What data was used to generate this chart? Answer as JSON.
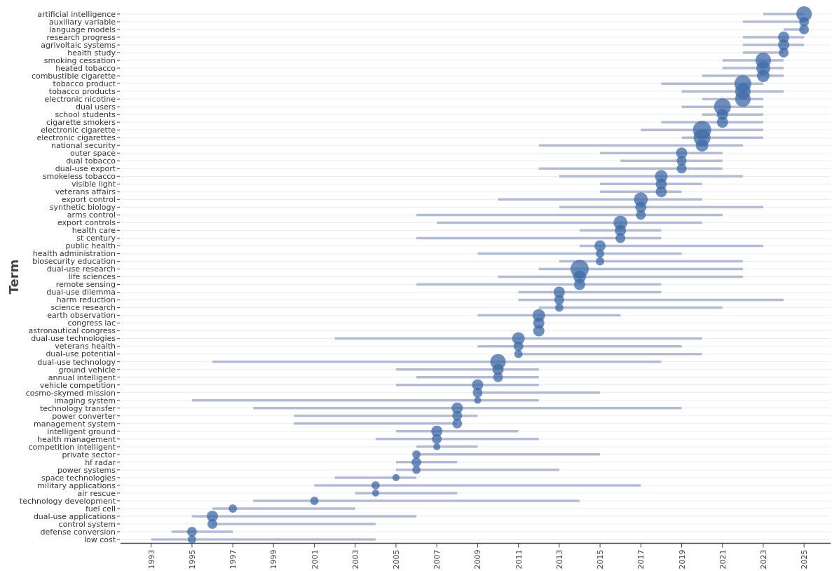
{
  "chart_data": {
    "type": "bubble",
    "orientation": "horizontal",
    "ylabel": "Term",
    "grid": "y",
    "categories": [
      "artificial intelligence",
      "auxiliary variable",
      "language models",
      "research progress",
      "agrivoltaic systems",
      "health study",
      "smoking cessation",
      "heated tobacco",
      "combustible cigarette",
      "tobacco product",
      "tobacco products",
      "electronic nicotine",
      "dual users",
      "school students",
      "cigarette smokers",
      "electronic cigarette",
      "electronic cigarettes",
      "national security",
      "outer space",
      "dual tobacco",
      "dual-use export",
      "smokeless tobacco",
      "visible light",
      "veterans affairs",
      "export control",
      "synthetic biology",
      "arms control",
      "export controls",
      "health care",
      "st century",
      "public health",
      "health administration",
      "biosecurity education",
      "dual-use research",
      "life sciences",
      "remote sensing",
      "dual-use dilemma",
      "harm reduction",
      "science research",
      "earth observation",
      "congress iac",
      "astronautical congress",
      "dual-use technologies",
      "veterans health",
      "dual-use potential",
      "dual-use technology",
      "ground vehicle",
      "annual intelligent",
      "vehicle competition",
      "cosmo-skymed mission",
      "imaging system",
      "technology transfer",
      "power converter",
      "management system",
      "intelligent ground",
      "health management",
      "competition intelligent",
      "private sector",
      "hf radar",
      "power systems",
      "space technologies",
      "military applications",
      "air rescue",
      "technology development",
      "fuel cell",
      "dual-use applications",
      "control system",
      "defense conversion",
      "low cost"
    ],
    "series": [
      {
        "color": "#3d6aa6",
        "values": [
          2025,
          2025,
          2025,
          2024,
          2024,
          2024,
          2023,
          2023,
          2023,
          2022,
          2022,
          2022,
          2021,
          2021,
          2021,
          2020,
          2020,
          2020,
          2019,
          2019,
          2019,
          2018,
          2018,
          2018,
          2017,
          2017,
          2017,
          2016,
          2016,
          2016,
          2015,
          2015,
          2015,
          2014,
          2014,
          2014,
          2013,
          2013,
          2013,
          2012,
          2012,
          2012,
          2011,
          2011,
          2011,
          2010,
          2010,
          2010,
          2009,
          2009,
          2009,
          2008,
          2008,
          2008,
          2007,
          2007,
          2007,
          2006,
          2006,
          2006,
          2005,
          2004,
          2004,
          2001,
          1997,
          1996,
          1996,
          1995,
          1995
        ],
        "sizes": [
          0.72,
          0.29,
          0.29,
          0.38,
          0.38,
          0.29,
          0.72,
          0.59,
          0.48,
          0.85,
          0.72,
          0.72,
          0.85,
          0.38,
          0.38,
          1,
          0.85,
          0.48,
          0.38,
          0.29,
          0.29,
          0.48,
          0.38,
          0.38,
          0.59,
          0.38,
          0.29,
          0.59,
          0.38,
          0.29,
          0.38,
          0.21,
          0.21,
          1,
          0.48,
          0.38,
          0.38,
          0.29,
          0.21,
          0.48,
          0.38,
          0.38,
          0.48,
          0.29,
          0.21,
          0.72,
          0.38,
          0.29,
          0.38,
          0.29,
          0.15,
          0.38,
          0.29,
          0.29,
          0.38,
          0.29,
          0.15,
          0.21,
          0.29,
          0.21,
          0.15,
          0.21,
          0.15,
          0.21,
          0.21,
          0.38,
          0.29,
          0.29,
          0.21
        ],
        "errors": [
          [
            2023,
            2025
          ],
          [
            2022,
            2025
          ],
          [
            2024,
            2025
          ],
          [
            2022,
            2025
          ],
          [
            2022,
            2025
          ],
          [
            2022,
            2024
          ],
          [
            2021,
            2024
          ],
          [
            2021,
            2024
          ],
          [
            2020,
            2024
          ],
          [
            2018,
            2023
          ],
          [
            2019,
            2024
          ],
          [
            2020,
            2023
          ],
          [
            2019,
            2023
          ],
          [
            2020,
            2023
          ],
          [
            2018,
            2023
          ],
          [
            2017,
            2023
          ],
          [
            2019,
            2023
          ],
          [
            2012,
            2022
          ],
          [
            2015,
            2021
          ],
          [
            2016,
            2021
          ],
          [
            2012,
            2021
          ],
          [
            2013,
            2022
          ],
          [
            2015,
            2020
          ],
          [
            2015,
            2019
          ],
          [
            2010,
            2020
          ],
          [
            2013,
            2023
          ],
          [
            2006,
            2021
          ],
          [
            2007,
            2020
          ],
          [
            2014,
            2018
          ],
          [
            2006,
            2018
          ],
          [
            2014,
            2023
          ],
          [
            2009,
            2019
          ],
          [
            2013,
            2022
          ],
          [
            2012,
            2022
          ],
          [
            2010,
            2022
          ],
          [
            2006,
            2018
          ],
          [
            2011,
            2018
          ],
          [
            2011,
            2024
          ],
          [
            2012,
            2021
          ],
          [
            2009,
            2016
          ],
          null,
          null,
          [
            2002,
            2020
          ],
          [
            2009,
            2019
          ],
          [
            2011,
            2020
          ],
          [
            1996,
            2018
          ],
          [
            2005,
            2012
          ],
          [
            2006,
            2012
          ],
          [
            2005,
            2012
          ],
          [
            2009,
            2015
          ],
          [
            1995,
            2012
          ],
          [
            1998,
            2019
          ],
          [
            2000,
            2009
          ],
          [
            2000,
            2008
          ],
          [
            2005,
            2011
          ],
          [
            2004,
            2012
          ],
          [
            2006,
            2009
          ],
          [
            2006,
            2015
          ],
          [
            2005,
            2008
          ],
          [
            2005,
            2013
          ],
          [
            2002,
            2006
          ],
          [
            2001,
            2017
          ],
          [
            2003,
            2008
          ],
          [
            1998,
            2014
          ],
          [
            1996,
            2003
          ],
          [
            1995,
            2006
          ],
          [
            1996,
            2004
          ],
          [
            1994,
            1997
          ],
          [
            1993,
            2004
          ]
        ]
      }
    ],
    "xlim": [
      1991.5,
      2026.3
    ],
    "xticks": [
      1993,
      1995,
      1997,
      1999,
      2001,
      2003,
      2005,
      2007,
      2009,
      2011,
      2013,
      2015,
      2017,
      2019,
      2021,
      2023,
      2025
    ]
  }
}
